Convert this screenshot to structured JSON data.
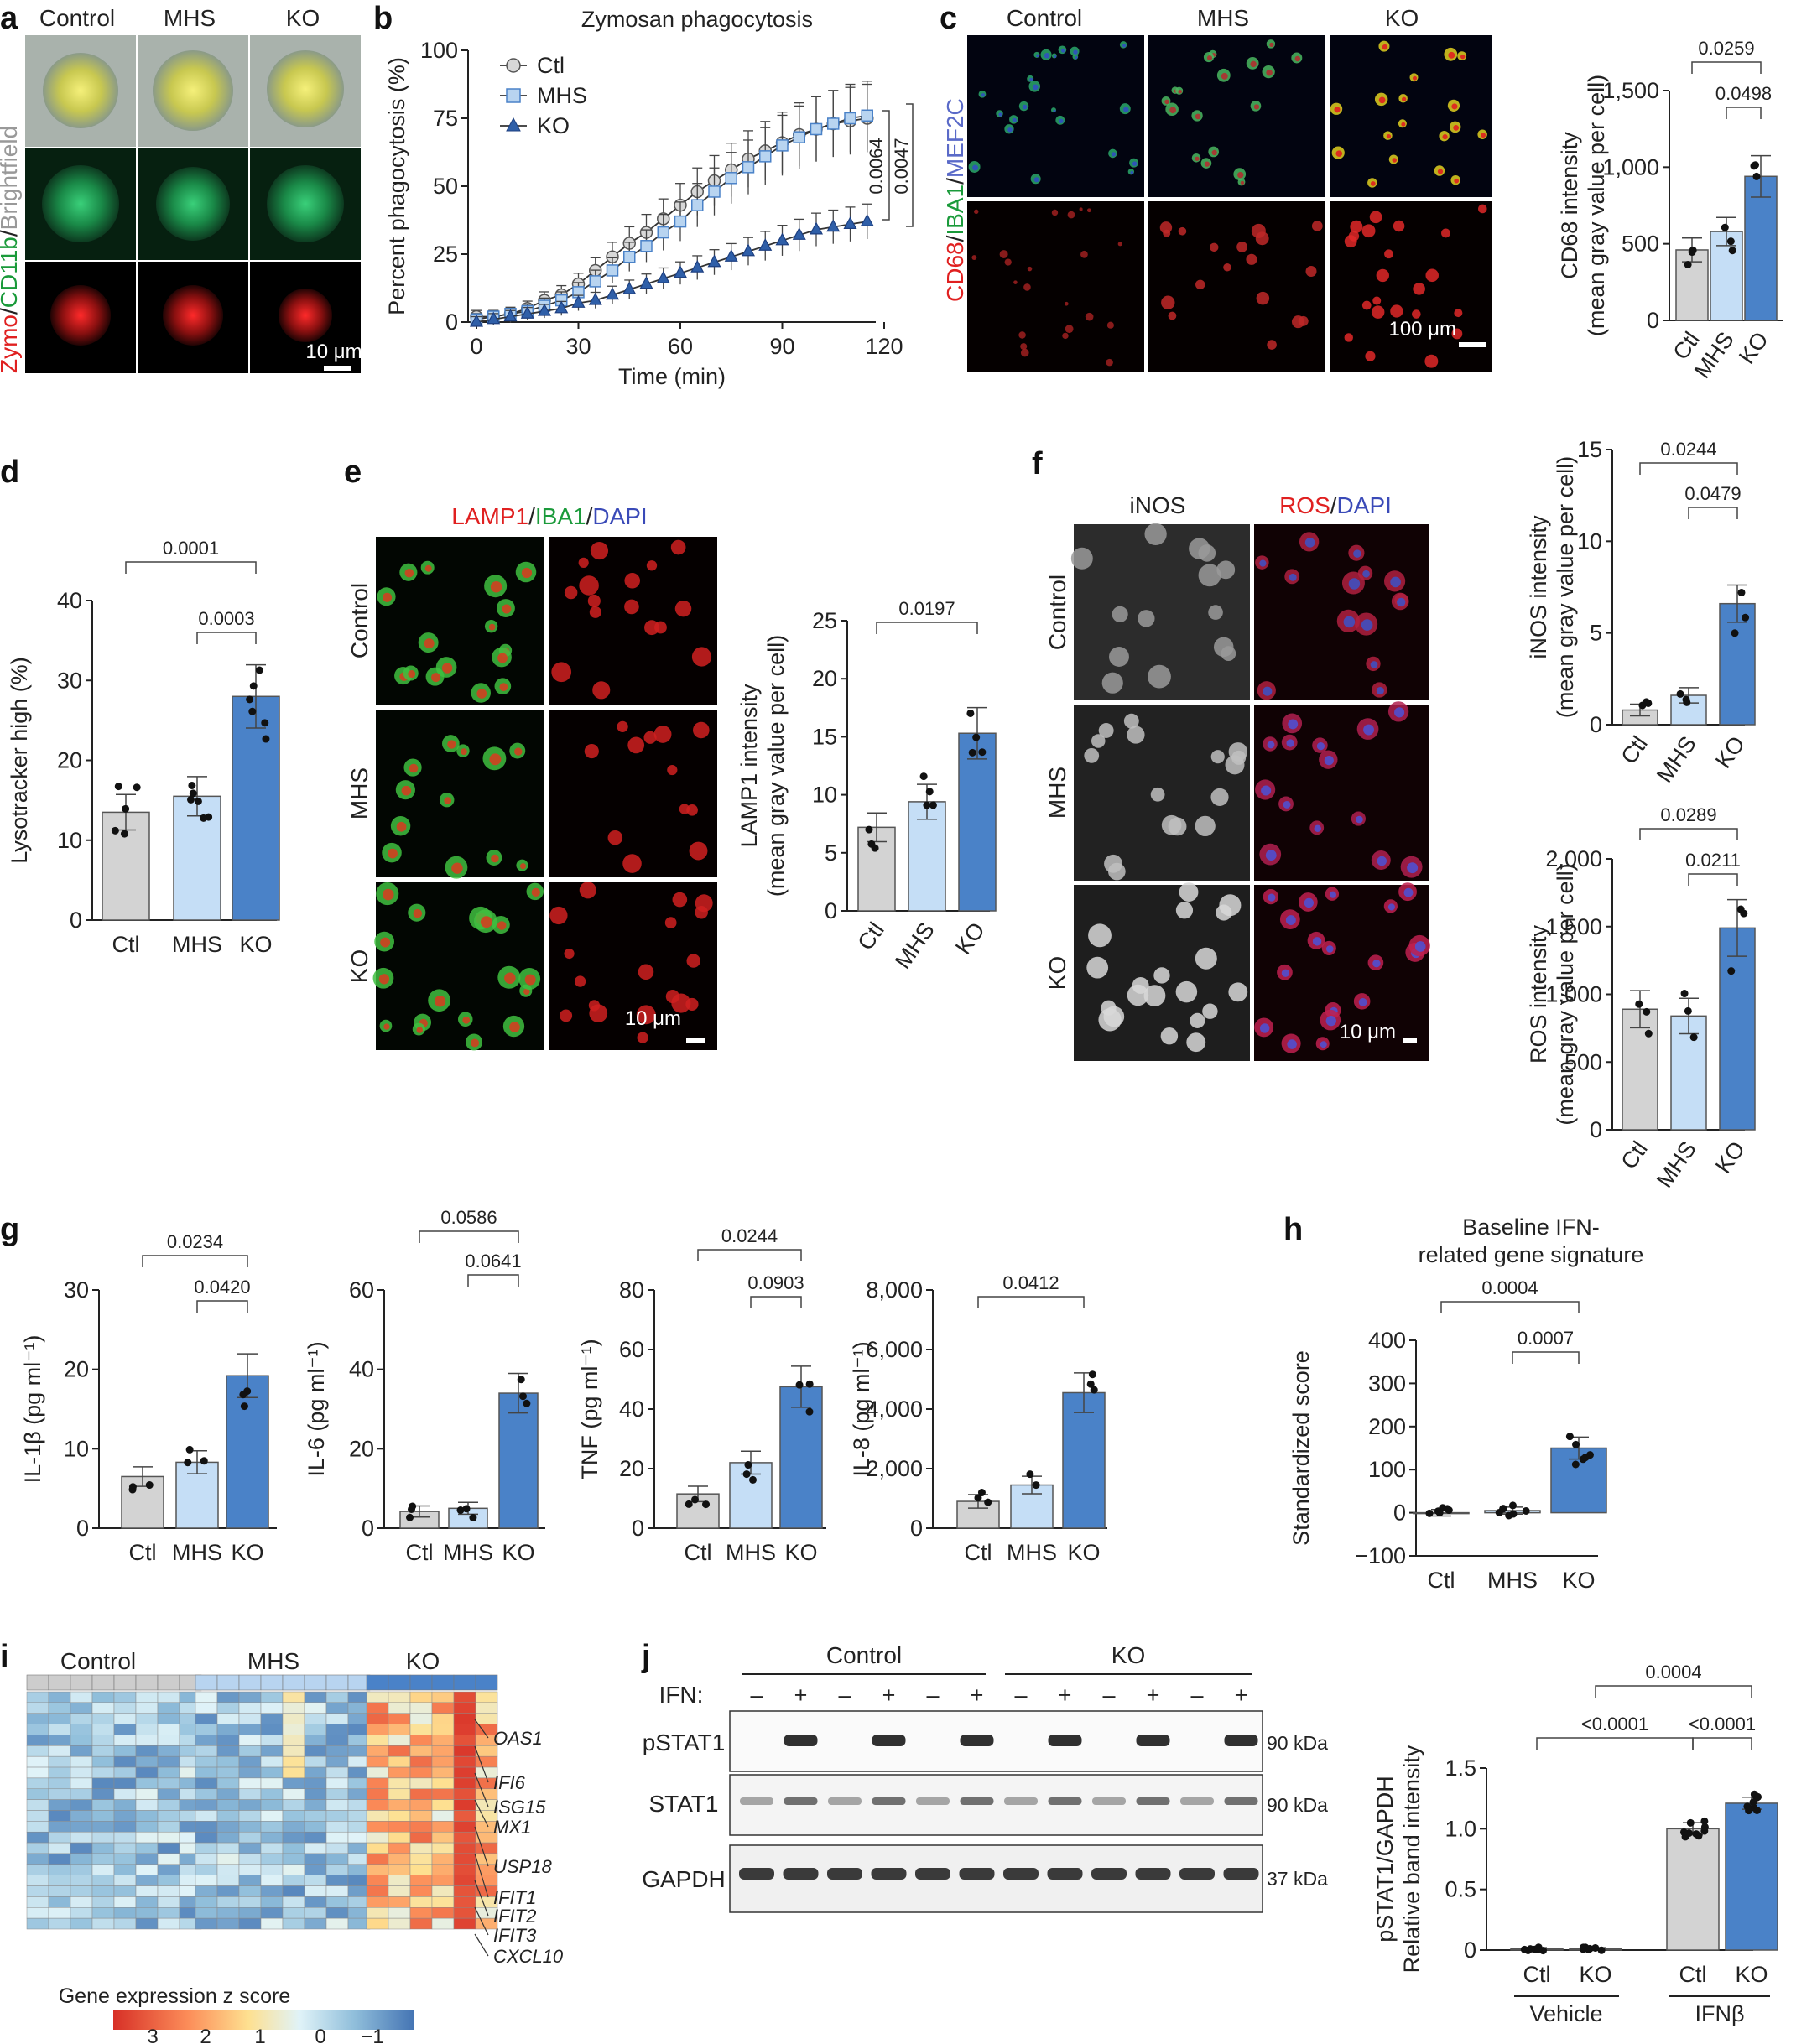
{
  "panels": {
    "a": "a",
    "b": "b",
    "c": "c",
    "d": "d",
    "e": "e",
    "f": "f",
    "g": "g",
    "h": "h",
    "i": "i",
    "j": "j"
  },
  "colors": {
    "ctl": "#d3d3d3",
    "mhs": "#c5def6",
    "ko": "#4a82c8",
    "edge": "#555555"
  },
  "panel_a": {
    "cols": [
      "Control",
      "MHS",
      "KO"
    ],
    "stain_zymo": "Zymo",
    "stain_cd11b": "CD11b",
    "stain_bf": "Brightfield",
    "scale": "10 μm"
  },
  "panel_c": {
    "cols": [
      "Control",
      "MHS",
      "KO"
    ],
    "stain_cd68": "CD68",
    "stain_iba1": "IBA1",
    "stain_mef2c": "MEF2C",
    "scale": "100 μm"
  },
  "panel_e": {
    "stain_lamp1": "LAMP1",
    "stain_iba1": "IBA1",
    "stain_dapi": "DAPI",
    "rows": [
      "Control",
      "MHS",
      "KO"
    ],
    "scale": "10 μm"
  },
  "panel_f": {
    "col_inos": "iNOS",
    "stain_ros": "ROS",
    "stain_dapi": "DAPI",
    "rows": [
      "Control",
      "MHS",
      "KO"
    ],
    "scale": "10 μm"
  },
  "panel_i": {
    "groups": [
      "Control",
      "MHS",
      "KO"
    ],
    "genes": [
      "OAS1",
      "IFI6",
      "ISG15",
      "MX1",
      "USP18",
      "IFIT1",
      "IFIT2",
      "IFIT3",
      "CXCL10"
    ],
    "legend_title": "Gene expression z score",
    "legend_ticks": [
      "3",
      "2",
      "1",
      "0",
      "−1"
    ]
  },
  "panel_j": {
    "groups": [
      "Control",
      "KO"
    ],
    "ifn_label": "IFN:",
    "lanes": [
      "–",
      "+",
      "–",
      "+",
      "–",
      "+",
      "–",
      "+",
      "–",
      "+",
      "–",
      "+"
    ],
    "blots": [
      "pSTAT1",
      "STAT1",
      "GAPDH"
    ],
    "kda": [
      "90 kDa",
      "90 kDa",
      "37 kDa"
    ]
  },
  "chart_data": [
    {
      "panel": "b",
      "type": "line",
      "title": "Zymosan phagocytosis",
      "xlabel": "Time (min)",
      "ylabel": "Percent phagocytosis (%)",
      "xlim": [
        0,
        120
      ],
      "ylim": [
        0,
        100
      ],
      "xticks": [
        "0",
        "30",
        "60",
        "90",
        "120"
      ],
      "yticks": [
        "0",
        "25",
        "50",
        "75",
        "100"
      ],
      "x": [
        0,
        5,
        10,
        15,
        20,
        25,
        30,
        35,
        40,
        45,
        50,
        55,
        60,
        65,
        70,
        75,
        80,
        85,
        90,
        95,
        100,
        105,
        110,
        115
      ],
      "series": [
        {
          "name": "Ctl",
          "values": [
            2,
            2,
            3,
            5,
            8,
            10,
            14,
            19,
            24,
            29,
            33,
            38,
            43,
            48,
            52,
            56,
            60,
            63,
            66,
            69,
            71,
            73,
            74,
            75
          ]
        },
        {
          "name": "MHS",
          "values": [
            1,
            2,
            3,
            4,
            6,
            8,
            11,
            15,
            19,
            24,
            28,
            33,
            37,
            43,
            48,
            53,
            57,
            61,
            65,
            68,
            71,
            73,
            75,
            76
          ]
        },
        {
          "name": "KO",
          "values": [
            0,
            1,
            2,
            3,
            4,
            5,
            7,
            8,
            10,
            12,
            14,
            16,
            18,
            20,
            22,
            24,
            26,
            28,
            30,
            32,
            34,
            35,
            36,
            37
          ]
        }
      ],
      "sig": [
        "0.0064",
        "0.0047"
      ]
    },
    {
      "panel": "c",
      "type": "bar",
      "ylabel": "CD68 intensity",
      "ylabel2": "(mean gray value per cell)",
      "categories": [
        "Ctl",
        "MHS",
        "KO"
      ],
      "values": [
        460,
        580,
        940
      ],
      "ylim": [
        0,
        1500
      ],
      "yticks": [
        "0",
        "500",
        "1,000",
        "1,500"
      ],
      "sig": [
        "0.0259",
        "0.0498"
      ]
    },
    {
      "panel": "d",
      "type": "bar",
      "ylabel": "Lysotracker high (%)",
      "categories": [
        "Ctl",
        "MHS",
        "KO"
      ],
      "values": [
        13.5,
        15.5,
        28.0
      ],
      "ylim": [
        0,
        40
      ],
      "yticks": [
        "0",
        "10",
        "20",
        "30",
        "40"
      ],
      "sig": [
        "0.0001",
        "0.0003"
      ]
    },
    {
      "panel": "e",
      "type": "bar",
      "ylabel": "LAMP1 intensity",
      "ylabel2": "(mean gray value per cell)",
      "categories": [
        "Ctl",
        "MHS",
        "KO"
      ],
      "values": [
        7.2,
        9.4,
        15.3
      ],
      "ylim": [
        0,
        25
      ],
      "yticks": [
        "0",
        "5",
        "10",
        "15",
        "20",
        "25"
      ],
      "sig": [
        "0.0197"
      ]
    },
    {
      "panel": "f1",
      "type": "bar",
      "ylabel": "iNOS intensity",
      "ylabel2": "(mean gray value per cell)",
      "categories": [
        "Ctl",
        "MHS",
        "KO"
      ],
      "values": [
        0.8,
        1.6,
        6.6
      ],
      "ylim": [
        0,
        15
      ],
      "yticks": [
        "0",
        "5",
        "10",
        "15"
      ],
      "sig": [
        "0.0244",
        "0.0479"
      ]
    },
    {
      "panel": "f2",
      "type": "bar",
      "ylabel": "ROS intensity",
      "ylabel2": "(mean gray value per cell)",
      "categories": [
        "Ctl",
        "MHS",
        "KO"
      ],
      "values": [
        890,
        840,
        1490
      ],
      "ylim": [
        0,
        2000
      ],
      "yticks": [
        "0",
        "500",
        "1,000",
        "1,500",
        "2,000"
      ],
      "sig": [
        "0.0289",
        "0.0211"
      ]
    },
    {
      "panel": "g1",
      "type": "bar",
      "ylabel": "IL-1β (pg ml⁻¹)",
      "categories": [
        "Ctl",
        "MHS",
        "KO"
      ],
      "values": [
        6.5,
        8.3,
        19.2
      ],
      "ylim": [
        0,
        30
      ],
      "yticks": [
        "0",
        "10",
        "20",
        "30"
      ],
      "sig": [
        "0.0234",
        "0.0420"
      ]
    },
    {
      "panel": "g2",
      "type": "bar",
      "ylabel": "IL-6 (pg ml⁻¹)",
      "categories": [
        "Ctl",
        "MHS",
        "KO"
      ],
      "values": [
        4.2,
        5.0,
        34.0
      ],
      "ylim": [
        0,
        60
      ],
      "yticks": [
        "0",
        "20",
        "40",
        "60"
      ],
      "sig": [
        "0.0586",
        "0.0641"
      ]
    },
    {
      "panel": "g3",
      "type": "bar",
      "ylabel": "TNF (pg ml⁻¹)",
      "categories": [
        "Ctl",
        "MHS",
        "KO"
      ],
      "values": [
        11.5,
        22.0,
        47.5
      ],
      "ylim": [
        0,
        80
      ],
      "yticks": [
        "0",
        "20",
        "40",
        "60",
        "80"
      ],
      "sig": [
        "0.0244",
        "0.0903"
      ]
    },
    {
      "panel": "g4",
      "type": "bar",
      "ylabel": "IL-8 (pg ml⁻¹)",
      "categories": [
        "Ctl",
        "MHS",
        "KO"
      ],
      "values": [
        900,
        1450,
        4550
      ],
      "ylim": [
        0,
        8000
      ],
      "yticks": [
        "0",
        "2,000",
        "4,000",
        "6,000",
        "8,000"
      ],
      "sig": [
        "0.0412"
      ]
    },
    {
      "panel": "h",
      "type": "bar",
      "title": "Baseline IFN-",
      "title2": "related gene signature",
      "ylabel": "Standardized score",
      "categories": [
        "Ctl",
        "MHS",
        "KO"
      ],
      "values": [
        0,
        5,
        150
      ],
      "ylim": [
        -100,
        400
      ],
      "yticks": [
        "−100",
        "0",
        "100",
        "200",
        "300",
        "400"
      ],
      "sig": [
        "0.0004",
        "0.0007"
      ]
    },
    {
      "panel": "j",
      "type": "bar",
      "ylabel": "pSTAT1/GAPDH",
      "ylabel2": "Relative band intensity",
      "categories": [
        "Ctl",
        "KO",
        "Ctl",
        "KO"
      ],
      "groups": [
        "Vehicle",
        "IFNβ"
      ],
      "values": [
        0.01,
        0.01,
        1.0,
        1.21
      ],
      "ylim": [
        0,
        1.5
      ],
      "yticks": [
        "0",
        "0.5",
        "1.0",
        "1.5"
      ],
      "sig": [
        "<0.0001",
        "<0.0001",
        "0.0004"
      ]
    }
  ]
}
